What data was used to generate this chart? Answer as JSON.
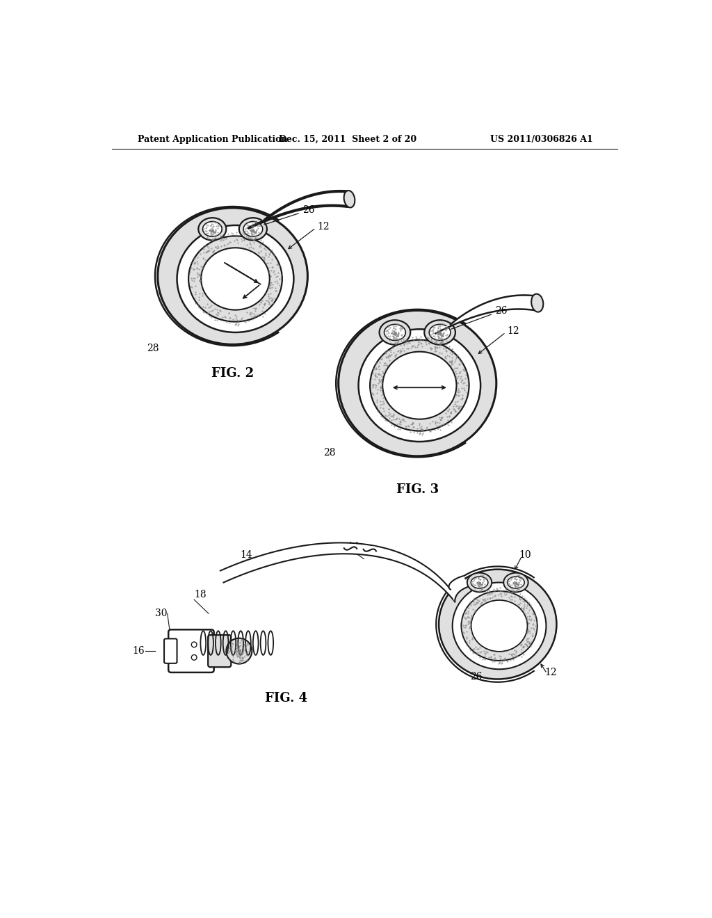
{
  "header_left": "Patent Application Publication",
  "header_mid": "Dec. 15, 2011  Sheet 2 of 20",
  "header_right": "US 2011/0306826 A1",
  "fig2_label": "FIG. 2",
  "fig3_label": "FIG. 3",
  "fig4_label": "FIG. 4",
  "bg_color": "#ffffff",
  "lc": "#1a1a1a",
  "tc": "#000000",
  "gray_light": "#e0e0e0",
  "gray_mid": "#b0b0b0",
  "gray_dark": "#808080",
  "stipple_color": "#c0c0c0"
}
